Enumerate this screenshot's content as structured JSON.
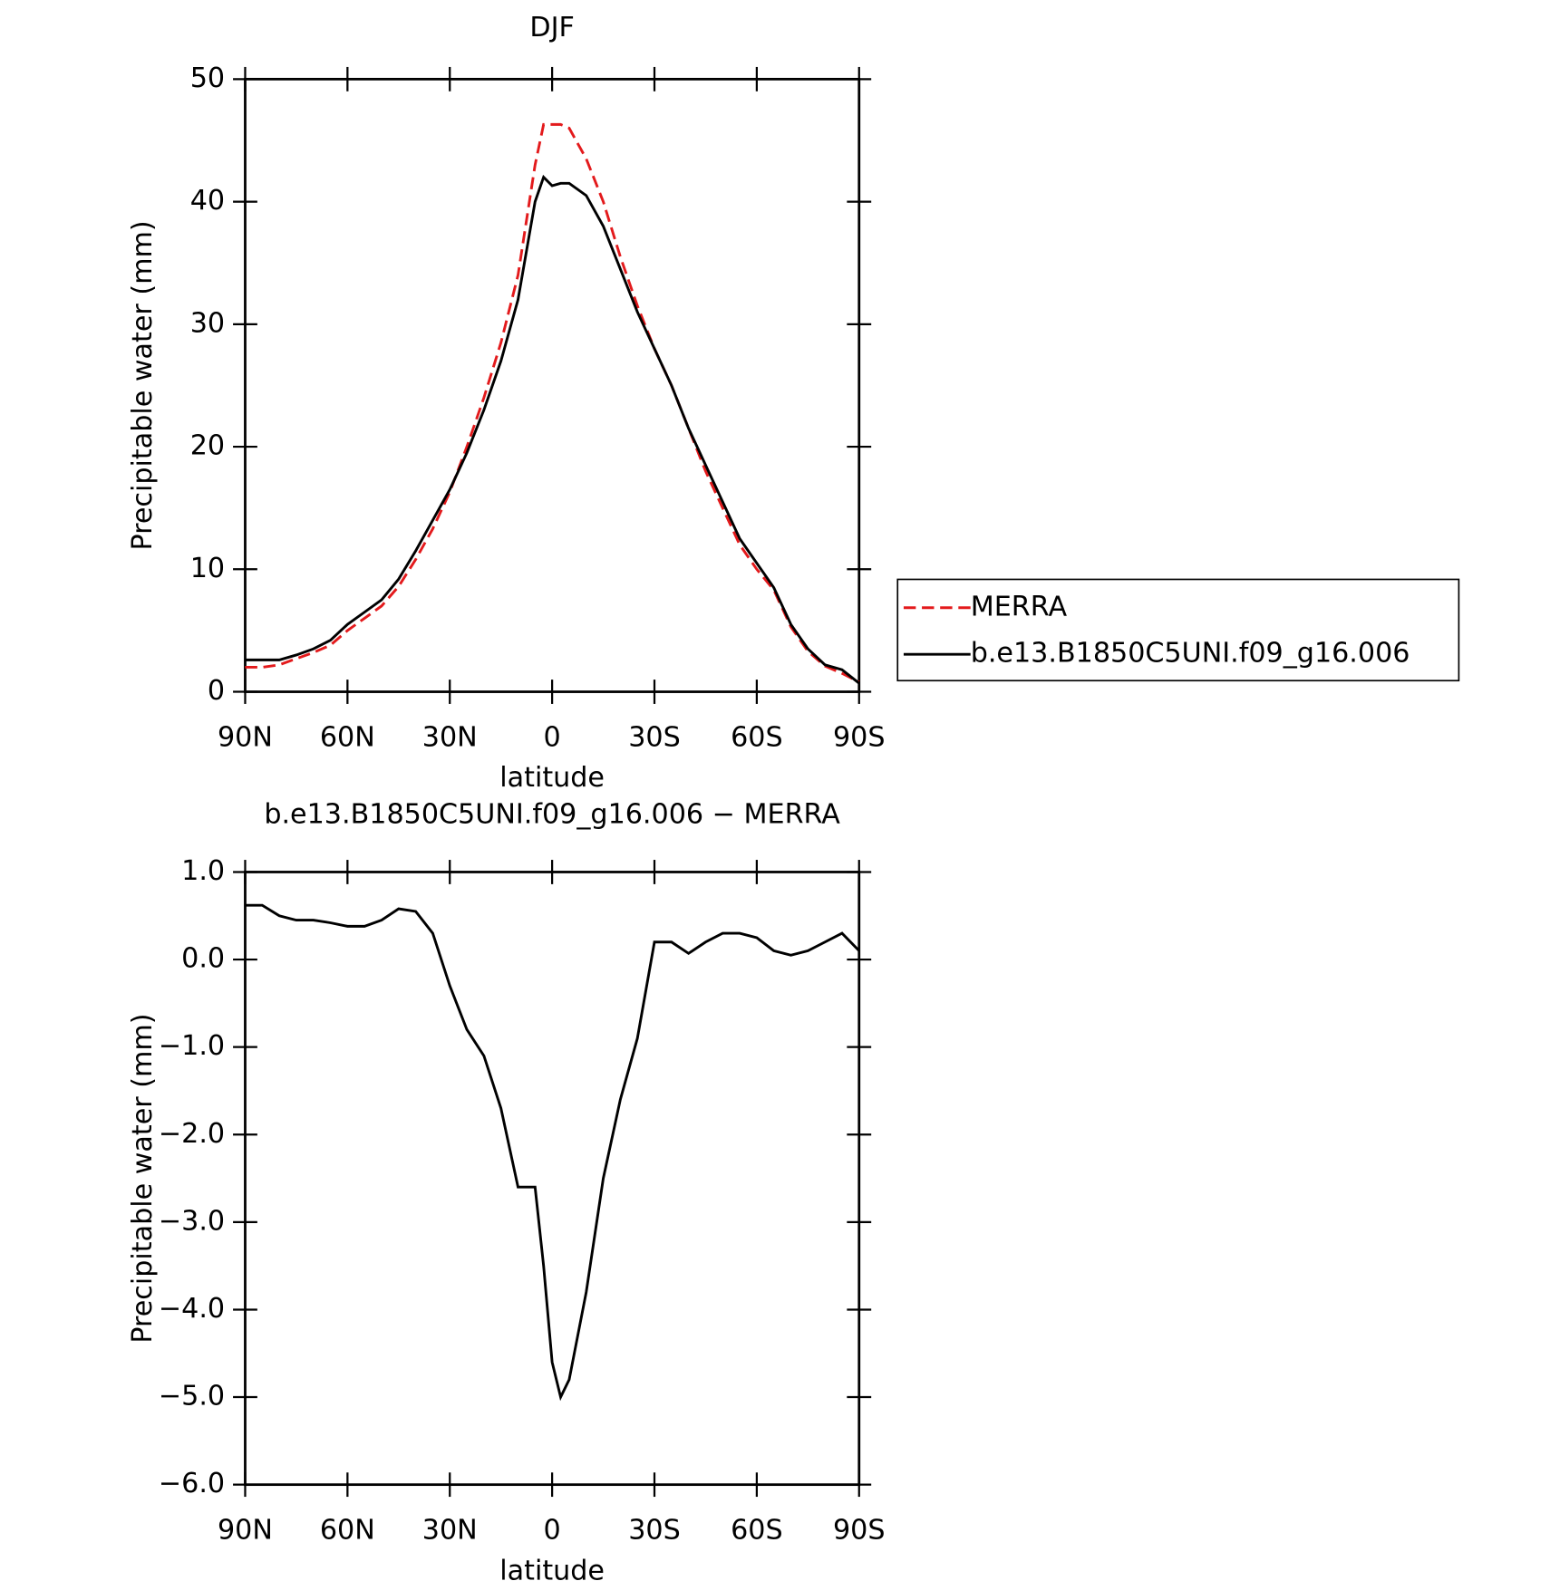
{
  "chart_data": [
    {
      "type": "line",
      "title": "DJF",
      "xlabel": "latitude",
      "ylabel": "Precipitable water (mm)",
      "x": [
        90,
        85,
        80,
        75,
        70,
        65,
        60,
        55,
        50,
        45,
        40,
        35,
        30,
        25,
        20,
        15,
        10,
        5,
        2.5,
        0,
        -2.5,
        -5,
        -10,
        -15,
        -20,
        -25,
        -30,
        -35,
        -40,
        -45,
        -50,
        -55,
        -60,
        -65,
        -70,
        -75,
        -80,
        -85,
        -90
      ],
      "xlim": [
        90,
        -90
      ],
      "xticks": [
        {
          "value": 90,
          "label": "90N"
        },
        {
          "value": 60,
          "label": "60N"
        },
        {
          "value": 30,
          "label": "30N"
        },
        0,
        {
          "value": -30,
          "label": "30S"
        },
        {
          "value": -60,
          "label": "60S"
        },
        {
          "value": -90,
          "label": "90S"
        }
      ],
      "ylim": [
        0,
        50
      ],
      "yticks": [
        0,
        10,
        20,
        30,
        40,
        50
      ],
      "legend": "right",
      "series": [
        {
          "name": "MERRA",
          "color": "#e31a1c",
          "dash": true,
          "values": [
            2.0,
            2.0,
            2.2,
            2.7,
            3.2,
            3.8,
            5.0,
            6.0,
            7.0,
            8.6,
            10.8,
            13.3,
            16.3,
            20,
            24,
            28.5,
            34,
            43,
            46.3,
            46.3,
            46.3,
            46,
            43.5,
            40,
            35.5,
            31.5,
            28,
            25,
            21.5,
            18,
            15,
            12,
            10,
            8.3,
            5.3,
            3.3,
            2.1,
            1.5,
            0.8
          ]
        },
        {
          "name": "b.e13.B1850C5UNI.f09_g16.006",
          "color": "#000000",
          "dash": false,
          "values": [
            2.6,
            2.6,
            2.6,
            3.0,
            3.5,
            4.2,
            5.5,
            6.5,
            7.5,
            9.2,
            11.5,
            14,
            16.5,
            19.5,
            23,
            27,
            32,
            40,
            42,
            41.3,
            41.5,
            41.5,
            40.5,
            38,
            34.5,
            31,
            28,
            25,
            21.5,
            18.5,
            15.5,
            12.5,
            10.5,
            8.5,
            5.5,
            3.5,
            2.2,
            1.8,
            0.7
          ]
        }
      ]
    },
    {
      "type": "line",
      "title": "b.e13.B1850C5UNI.f09_g16.006 − MERRA",
      "xlabel": "latitude",
      "ylabel": "Precipitable water (mm)",
      "x": [
        90,
        85,
        80,
        75,
        70,
        65,
        60,
        55,
        50,
        45,
        40,
        35,
        30,
        25,
        20,
        15,
        10,
        5,
        2.5,
        0,
        -2.5,
        -5,
        -10,
        -15,
        -20,
        -25,
        -30,
        -35,
        -40,
        -45,
        -50,
        -55,
        -60,
        -65,
        -70,
        -75,
        -80,
        -85,
        -90
      ],
      "xlim": [
        90,
        -90
      ],
      "xticks": [
        {
          "value": 90,
          "label": "90N"
        },
        {
          "value": 60,
          "label": "60N"
        },
        {
          "value": 30,
          "label": "30N"
        },
        0,
        {
          "value": -30,
          "label": "30S"
        },
        {
          "value": -60,
          "label": "60S"
        },
        {
          "value": -90,
          "label": "90S"
        }
      ],
      "ylim": [
        -6,
        1
      ],
      "yticks": [
        {
          "value": -6,
          "label": "−6.0"
        },
        {
          "value": -5,
          "label": "−5.0"
        },
        {
          "value": -4,
          "label": "−4.0"
        },
        {
          "value": -3,
          "label": "−3.0"
        },
        {
          "value": -2,
          "label": "−2.0"
        },
        {
          "value": -1,
          "label": "−1.0"
        },
        {
          "value": 0,
          "label": "0.0"
        },
        {
          "value": 1,
          "label": "1.0"
        }
      ],
      "series": [
        {
          "color": "#000000",
          "dash": false,
          "values": [
            0.62,
            0.62,
            0.5,
            0.45,
            0.45,
            0.42,
            0.38,
            0.38,
            0.45,
            0.58,
            0.55,
            0.3,
            -0.3,
            -0.8,
            -1.1,
            -1.7,
            -2.6,
            -2.6,
            -3.5,
            -4.6,
            -5.0,
            -4.8,
            -3.8,
            -2.5,
            -1.6,
            -0.9,
            0.2,
            0.2,
            0.07,
            0.2,
            0.3,
            0.3,
            0.25,
            0.1,
            0.05,
            0.1,
            0.2,
            0.3,
            0.1
          ]
        }
      ]
    }
  ]
}
